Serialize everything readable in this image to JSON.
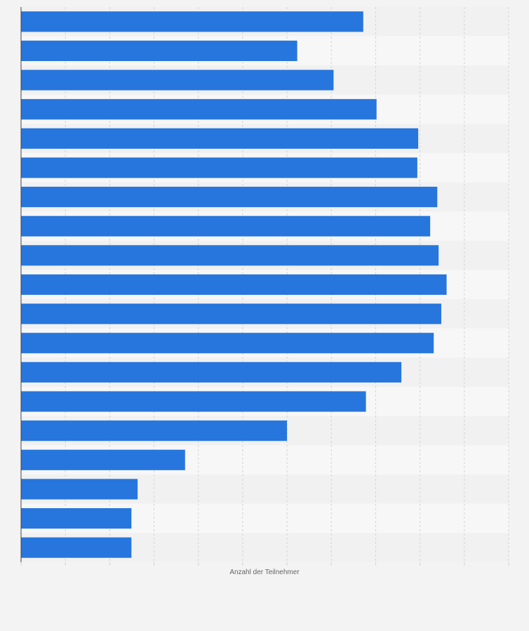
{
  "colors": {
    "bar": "#2776dd",
    "band_light": "#f7f7f7",
    "band_dark": "#f1f1f1",
    "grid": "#d4d4d4",
    "axis": "#444444"
  },
  "chart_data": {
    "type": "bar",
    "orientation": "horizontal",
    "title": "",
    "xlabel": "Anzahl der Teilnehmer",
    "ylabel": "",
    "categories": [
      "",
      "",
      "",
      "",
      "",
      "",
      "",
      "",
      "",
      "",
      "",
      "",
      "",
      "",
      "",
      "",
      "",
      "",
      ""
    ],
    "values": [
      77.2,
      62.3,
      70.5,
      80.2,
      89.6,
      89.4,
      93.9,
      92.3,
      94.2,
      96.0,
      94.8,
      93.1,
      85.8,
      77.8,
      60.0,
      37.0,
      26.3,
      24.9,
      24.9
    ],
    "xlim": [
      0,
      110
    ],
    "grid_step": 10,
    "grid": true,
    "legend": "none"
  }
}
